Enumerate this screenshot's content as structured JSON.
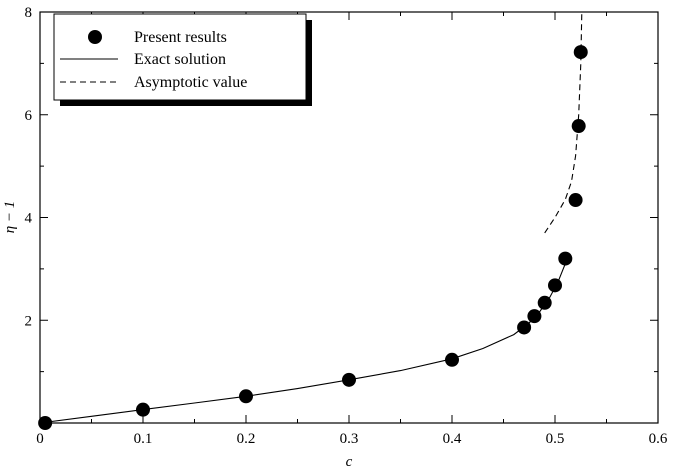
{
  "chart_data": {
    "type": "scatter",
    "xlabel": "c",
    "ylabel": "η − 1",
    "xlim": [
      0,
      0.6
    ],
    "ylim": [
      0,
      8
    ],
    "x_ticks": [
      0,
      0.1,
      0.2,
      0.3,
      0.4,
      0.5,
      0.6
    ],
    "x_tick_labels": [
      "0",
      "0.1",
      "0.2",
      "0.3",
      "0.4",
      "0.5",
      "0.6"
    ],
    "y_ticks": [
      2,
      4,
      6,
      8
    ],
    "y_tick_labels": [
      "2",
      "4",
      "6",
      "8"
    ],
    "grid": false,
    "legend_position": "top-left",
    "series": [
      {
        "name": "Present results",
        "kind": "markers",
        "points": [
          {
            "x": 0.005,
            "y": 0.0
          },
          {
            "x": 0.1,
            "y": 0.26
          },
          {
            "x": 0.2,
            "y": 0.52
          },
          {
            "x": 0.3,
            "y": 0.84
          },
          {
            "x": 0.4,
            "y": 1.23
          },
          {
            "x": 0.47,
            "y": 1.86
          },
          {
            "x": 0.48,
            "y": 2.08
          },
          {
            "x": 0.49,
            "y": 2.34
          },
          {
            "x": 0.5,
            "y": 2.68
          },
          {
            "x": 0.51,
            "y": 3.2
          },
          {
            "x": 0.52,
            "y": 4.34
          },
          {
            "x": 0.523,
            "y": 5.78
          },
          {
            "x": 0.525,
            "y": 7.22
          }
        ]
      },
      {
        "name": "Exact solution",
        "kind": "line",
        "points": [
          {
            "x": 0.0,
            "y": 0.0
          },
          {
            "x": 0.05,
            "y": 0.13
          },
          {
            "x": 0.1,
            "y": 0.26
          },
          {
            "x": 0.15,
            "y": 0.39
          },
          {
            "x": 0.2,
            "y": 0.52
          },
          {
            "x": 0.25,
            "y": 0.67
          },
          {
            "x": 0.3,
            "y": 0.84
          },
          {
            "x": 0.35,
            "y": 1.02
          },
          {
            "x": 0.4,
            "y": 1.25
          },
          {
            "x": 0.43,
            "y": 1.45
          },
          {
            "x": 0.46,
            "y": 1.72
          },
          {
            "x": 0.475,
            "y": 1.95
          },
          {
            "x": 0.485,
            "y": 2.16
          },
          {
            "x": 0.495,
            "y": 2.45
          },
          {
            "x": 0.503,
            "y": 2.75
          },
          {
            "x": 0.51,
            "y": 3.1
          },
          {
            "x": 0.513,
            "y": 3.3
          }
        ]
      },
      {
        "name": "Asymptotic value",
        "kind": "dashed-line",
        "points": [
          {
            "x": 0.49,
            "y": 3.7
          },
          {
            "x": 0.5,
            "y": 4.0
          },
          {
            "x": 0.51,
            "y": 4.35
          },
          {
            "x": 0.516,
            "y": 4.7
          },
          {
            "x": 0.52,
            "y": 5.2
          },
          {
            "x": 0.523,
            "y": 6.0
          },
          {
            "x": 0.525,
            "y": 7.0
          },
          {
            "x": 0.526,
            "y": 8.0
          }
        ]
      }
    ]
  }
}
